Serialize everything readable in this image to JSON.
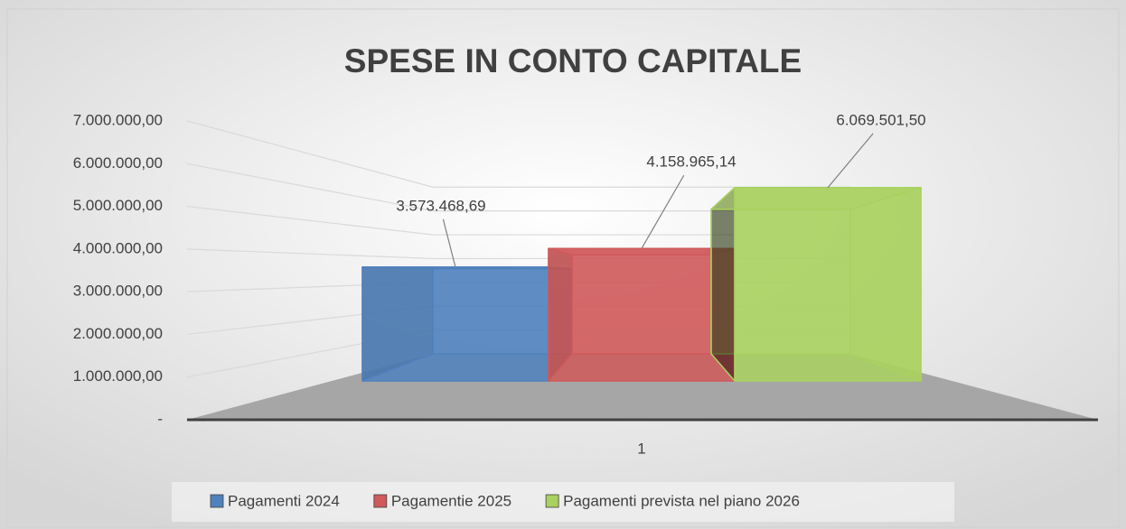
{
  "chart_data": {
    "type": "bar3d",
    "title": "SPESE IN CONTO CAPITALE",
    "categories": [
      "1"
    ],
    "series": [
      {
        "name": "Pagamenti 2024",
        "color": "#4f81bd",
        "values": [
          3573468.69
        ],
        "value_labels": [
          "3.573.468,69"
        ]
      },
      {
        "name": "Pagamentie 2025",
        "color": "#d0595a",
        "values": [
          4158965.14
        ],
        "value_labels": [
          "4.158.965,14"
        ]
      },
      {
        "name": "Pagamenti prevista nel piano 2026",
        "color": "#a9d15f",
        "values": [
          6069501.5
        ],
        "value_labels": [
          "6.069.501,50"
        ]
      }
    ],
    "ylim": [
      0,
      7000000
    ],
    "yticks": [
      {
        "value": 0,
        "label": "-"
      },
      {
        "value": 1000000,
        "label": "1.000.000,00"
      },
      {
        "value": 2000000,
        "label": "2.000.000,00"
      },
      {
        "value": 3000000,
        "label": "3.000.000,00"
      },
      {
        "value": 4000000,
        "label": "4.000.000,00"
      },
      {
        "value": 5000000,
        "label": "5.000.000,00"
      },
      {
        "value": 6000000,
        "label": "6.000.000,00"
      },
      {
        "value": 7000000,
        "label": "7.000.000,00"
      }
    ],
    "grid": true,
    "legend": "bottom"
  }
}
